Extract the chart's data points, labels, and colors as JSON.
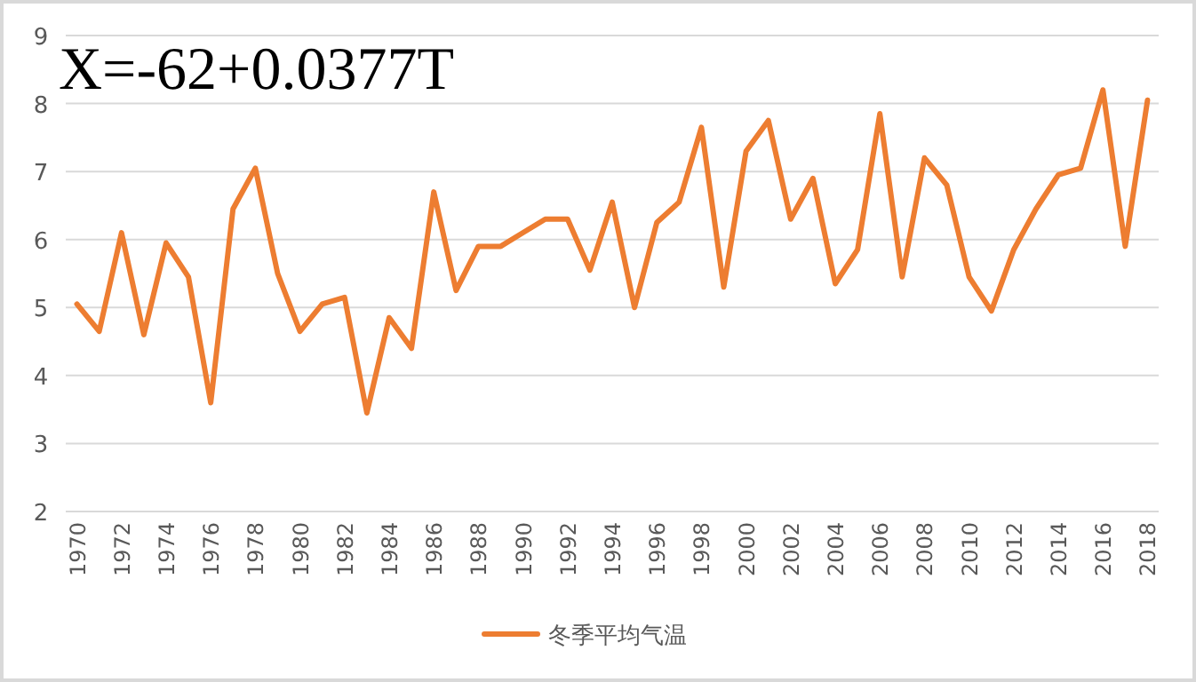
{
  "chart_data": {
    "type": "line",
    "annotations": [
      "X=-62+0.0377T"
    ],
    "categories": [
      "1970",
      null,
      "1972",
      null,
      "1974",
      null,
      "1976",
      null,
      "1978",
      null,
      "1980",
      null,
      "1982",
      null,
      "1984",
      null,
      "1986",
      null,
      "1988",
      null,
      "1990",
      null,
      "1992",
      null,
      "1994",
      null,
      "1996",
      null,
      "1998",
      null,
      "2000",
      null,
      "2002",
      null,
      "2004",
      null,
      "2006",
      null,
      "2008",
      null,
      "2010",
      null,
      "2012",
      null,
      "2014",
      null,
      "2016",
      null,
      "2018"
    ],
    "series": [
      {
        "name": "冬季平均气温",
        "color": "#ed7d31",
        "values": [
          5.05,
          4.65,
          6.1,
          4.6,
          5.95,
          5.45,
          3.6,
          6.45,
          7.05,
          5.5,
          4.65,
          5.05,
          5.15,
          3.45,
          4.85,
          4.4,
          6.7,
          5.25,
          5.9,
          5.9,
          6.1,
          6.3,
          6.3,
          5.55,
          6.55,
          5.0,
          6.25,
          6.55,
          7.65,
          5.3,
          7.3,
          7.75,
          6.3,
          6.9,
          5.35,
          5.85,
          7.85,
          5.45,
          7.2,
          6.8,
          5.45,
          4.95,
          5.85,
          6.45,
          6.95,
          7.05,
          8.2,
          5.9,
          8.05
        ]
      }
    ],
    "ylim": [
      2,
      9
    ],
    "yticks": [
      2,
      3,
      4,
      5,
      6,
      7,
      8,
      9
    ],
    "grid": "y",
    "legend": "bottom",
    "marker": "none",
    "line_style": "solid"
  }
}
